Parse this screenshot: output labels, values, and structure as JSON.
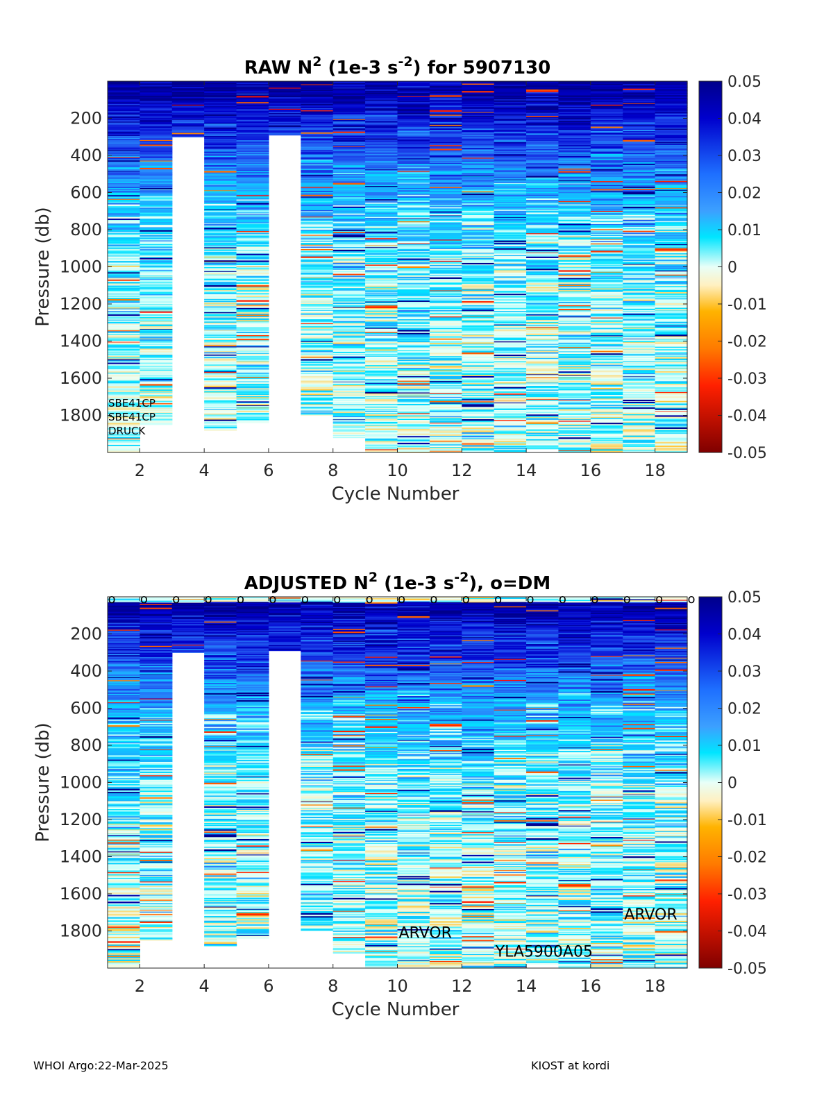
{
  "footer": {
    "left": "WHOI Argo:22-Mar-2025",
    "right": "KIOST at kordi"
  },
  "colors": {
    "colormap": [
      "#7f0000",
      "#ff0000",
      "#ff8c00",
      "#ffd700",
      "#fff8dc",
      "#e0ffff",
      "#00e5ff",
      "#1e90ff",
      "#0000cd",
      "#00008b"
    ]
  },
  "chart_data": [
    {
      "type": "heatmap",
      "title": "RAW N",
      "title_sup": "2",
      "title_mid": " (1e-3 s",
      "title_sup2": "-2",
      "title_end": ") for 5907130",
      "xlabel": "Cycle Number",
      "ylabel": "Pressure (db)",
      "xlim": [
        1,
        19
      ],
      "ylim": [
        0,
        2000
      ],
      "y_reversed": true,
      "xticks": [
        2,
        4,
        6,
        8,
        10,
        12,
        14,
        16,
        18
      ],
      "yticks": [
        200,
        400,
        600,
        800,
        1000,
        1200,
        1400,
        1600,
        1800
      ],
      "colorbar": {
        "range": [
          -0.05,
          0.05
        ],
        "ticks": [
          "0.05",
          "0.04",
          "0.03",
          "0.02",
          "0.01",
          "0",
          "-0.01",
          "-0.02",
          "-0.03",
          "-0.04",
          "-0.05"
        ]
      },
      "cycles": [
        1,
        2,
        3,
        4,
        5,
        6,
        7,
        8,
        9,
        10,
        11,
        12,
        13,
        14,
        15,
        16,
        17,
        18
      ],
      "max_pressure": [
        2000,
        1850,
        300,
        1880,
        1840,
        290,
        1800,
        1920,
        2000,
        2000,
        2000,
        2000,
        2000,
        1980,
        2000,
        2000,
        2000,
        2000
      ],
      "annotations": [
        {
          "text": "SBE41CP",
          "x": 1.0,
          "y": 1730
        },
        {
          "text": "SBE41CP",
          "x": 1.0,
          "y": 1805
        },
        {
          "text": "DRUCK",
          "x": 1.0,
          "y": 1880
        }
      ],
      "dm_markers": false
    },
    {
      "type": "heatmap",
      "title": "ADJUSTED N",
      "title_sup": "2",
      "title_mid": " (1e-3 s",
      "title_sup2": "-2",
      "title_end": "), o=DM",
      "xlabel": "Cycle Number",
      "ylabel": "Pressure (db)",
      "xlim": [
        1,
        19
      ],
      "ylim": [
        0,
        2000
      ],
      "y_reversed": true,
      "xticks": [
        2,
        4,
        6,
        8,
        10,
        12,
        14,
        16,
        18
      ],
      "yticks": [
        200,
        400,
        600,
        800,
        1000,
        1200,
        1400,
        1600,
        1800
      ],
      "colorbar": {
        "range": [
          -0.05,
          0.05
        ],
        "ticks": [
          "0.05",
          "0.04",
          "0.03",
          "0.02",
          "0.01",
          "0",
          "-0.01",
          "-0.02",
          "-0.03",
          "-0.04",
          "-0.05"
        ]
      },
      "cycles": [
        1,
        2,
        3,
        4,
        5,
        6,
        7,
        8,
        9,
        10,
        11,
        12,
        13,
        14,
        15,
        16,
        17,
        18
      ],
      "max_pressure": [
        2000,
        1850,
        300,
        1880,
        1840,
        290,
        1800,
        1920,
        2000,
        2000,
        2000,
        2000,
        2000,
        1980,
        2000,
        2000,
        2000,
        2000
      ],
      "annotations": [
        {
          "text": "ARVOR",
          "x": 10.0,
          "y": 1800
        },
        {
          "text": "YLA5900A05",
          "x": 13.0,
          "y": 1900
        },
        {
          "text": "ARVOR",
          "x": 17.0,
          "y": 1700
        }
      ],
      "dm_markers": true,
      "dm_marker_text": "o",
      "dm_cycles": [
        1,
        2,
        3,
        4,
        5,
        6,
        7,
        8,
        9,
        10,
        11,
        12,
        13,
        14,
        15,
        16,
        17,
        18,
        19
      ]
    }
  ]
}
